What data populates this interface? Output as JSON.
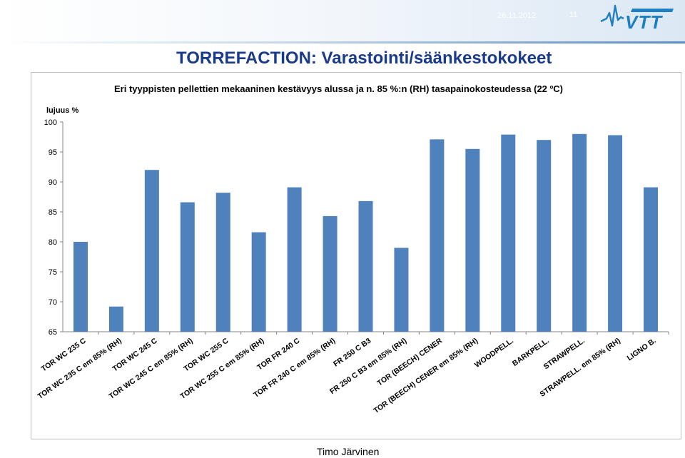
{
  "header": {
    "date": "26.11.2012",
    "page_number": "11",
    "logo_text": "VTT",
    "brand_color": "#1e7fc2",
    "bar_start_color": "#0d58a6"
  },
  "slide": {
    "title": "TORREFACTION: Varastointi/säänkestokokeet",
    "author": "Timo Järvinen",
    "title_color": "#1a3a8a"
  },
  "chart_data": {
    "type": "bar",
    "title": "Eri tyyppisten pellettien mekaaninen kestävyys alussa ja n. 85 %:n (RH) tasapainokosteudessa (22 ºC)",
    "ylabel": "lujuus %",
    "xlabel": "",
    "ylim": [
      65,
      100
    ],
    "yticks": [
      65,
      70,
      75,
      80,
      85,
      90,
      95,
      100
    ],
    "grid": false,
    "legend": "none",
    "bar_color": "#4f81bd",
    "categories": [
      "TOR WC 235 C",
      "TOR WC 235 C em 85% (RH)",
      "TOR WC 245 C",
      "TOR WC 245 C em 85% (RH)",
      "TOR WC 255 C",
      "TOR WC 255 C em 85% (RH)",
      "TOR FR 240 C",
      "TOR FR 240 C em 85% (RH)",
      "FR 250 C B3",
      "FR 250 C B3 em 85% (RH)",
      "TOR (BEECH) CENER",
      "TOR (BEECH) CENER em 85% (RH)",
      "WOODPELL.",
      "BARKPELL.",
      "STRAWPELL.",
      "STRAWPELL. em 85% (RH)",
      "LIGNO B."
    ],
    "values": [
      80.0,
      69.2,
      92.0,
      86.6,
      88.2,
      81.6,
      89.1,
      84.3,
      86.8,
      79.0,
      97.1,
      95.5,
      97.9,
      97.0,
      98.0,
      97.8,
      89.1
    ]
  }
}
